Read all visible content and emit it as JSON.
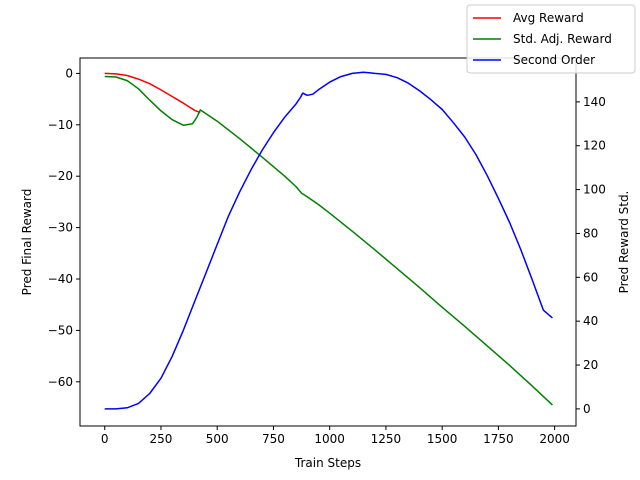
{
  "chart_data": {
    "type": "line",
    "title": "",
    "xlabel": "Train Steps",
    "ylabel": "Pred Final Reward",
    "y2label": "Pred Reward Std.",
    "xlim": [
      -110,
      2095
    ],
    "ylim": [
      -68.6,
      3.0
    ],
    "y2lim": [
      -7.8,
      160.0
    ],
    "xticks": [
      0,
      250,
      500,
      750,
      1000,
      1250,
      1500,
      1750,
      2000
    ],
    "yticks": [
      0,
      -10,
      -20,
      -30,
      -40,
      -50,
      -60
    ],
    "y2ticks": [
      0,
      20,
      40,
      60,
      80,
      100,
      120,
      140
    ],
    "legend_position": "top-right",
    "series": [
      {
        "name": "Avg Reward",
        "color": "#ff0000",
        "axis": "left",
        "x": [
          0,
          50,
          100,
          150,
          200,
          250,
          300,
          350,
          400,
          425
        ],
        "y": [
          0,
          -0.1,
          -0.4,
          -1.1,
          -2.0,
          -3.2,
          -4.5,
          -5.8,
          -7.2,
          -7.6
        ]
      },
      {
        "name": "Std. Adj. Reward",
        "color": "#008000",
        "axis": "left",
        "x": [
          0,
          50,
          100,
          150,
          200,
          250,
          300,
          350,
          390,
          410,
          425,
          500,
          600,
          700,
          800,
          850,
          875,
          900,
          950,
          1000,
          1100,
          1200,
          1300,
          1400,
          1500,
          1600,
          1700,
          1800,
          1900,
          1990
        ],
        "y": [
          -0.6,
          -0.7,
          -1.4,
          -3.0,
          -5.2,
          -7.3,
          -9.0,
          -10.1,
          -9.8,
          -8.5,
          -7.1,
          -9.3,
          -12.7,
          -16.3,
          -20.0,
          -22.0,
          -23.3,
          -24.0,
          -25.5,
          -27.2,
          -30.7,
          -34.3,
          -38.0,
          -41.7,
          -45.5,
          -49.2,
          -53.0,
          -56.8,
          -60.8,
          -64.5
        ]
      },
      {
        "name": "Second Order",
        "color": "#0000ff",
        "axis": "right",
        "x": [
          0,
          50,
          100,
          150,
          200,
          250,
          300,
          350,
          400,
          450,
          500,
          550,
          600,
          650,
          700,
          750,
          800,
          850,
          870,
          880,
          900,
          925,
          950,
          1000,
          1050,
          1100,
          1150,
          1175,
          1200,
          1250,
          1300,
          1350,
          1400,
          1450,
          1500,
          1550,
          1600,
          1650,
          1700,
          1750,
          1800,
          1850,
          1900,
          1950,
          1990
        ],
        "y": [
          0,
          0,
          0.5,
          2.5,
          7,
          14,
          24,
          36,
          49,
          62,
          75,
          88,
          99,
          109,
          118,
          126,
          133,
          139,
          142,
          144,
          143,
          143.5,
          145.5,
          149,
          151.5,
          153,
          153.5,
          153.3,
          153,
          152.5,
          151,
          148.5,
          145,
          141,
          136.5,
          130.5,
          124,
          116,
          106.5,
          96,
          85,
          72.5,
          59,
          45,
          41.5
        ]
      }
    ]
  }
}
